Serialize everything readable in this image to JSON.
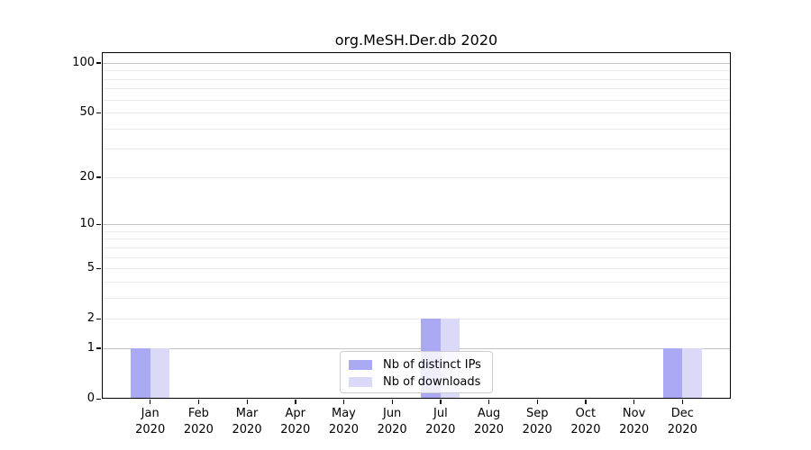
{
  "chart_data": {
    "type": "bar",
    "title": "org.MeSH.Der.db 2020",
    "x_year_label": "2020",
    "categories": [
      "Jan",
      "Feb",
      "Mar",
      "Apr",
      "May",
      "Jun",
      "Jul",
      "Aug",
      "Sep",
      "Oct",
      "Nov",
      "Dec"
    ],
    "series": [
      {
        "name": "Nb of distinct IPs",
        "color": "#a9a9f4",
        "values": [
          1,
          0,
          0,
          0,
          0,
          0,
          2,
          0,
          0,
          0,
          0,
          1
        ]
      },
      {
        "name": "Nb of downloads",
        "color": "#dadaf8",
        "values": [
          1,
          0,
          0,
          0,
          0,
          0,
          2,
          0,
          0,
          0,
          0,
          1
        ]
      }
    ],
    "y_ticks": [
      0,
      1,
      2,
      5,
      10,
      20,
      50,
      100
    ],
    "y_scale": "log1p",
    "y_top": 116,
    "ylim": [
      0,
      116
    ],
    "grid": true,
    "legend_position": "lower center",
    "grid_major_color": "#c3c3c3",
    "grid_minor_color": "#ececec"
  }
}
